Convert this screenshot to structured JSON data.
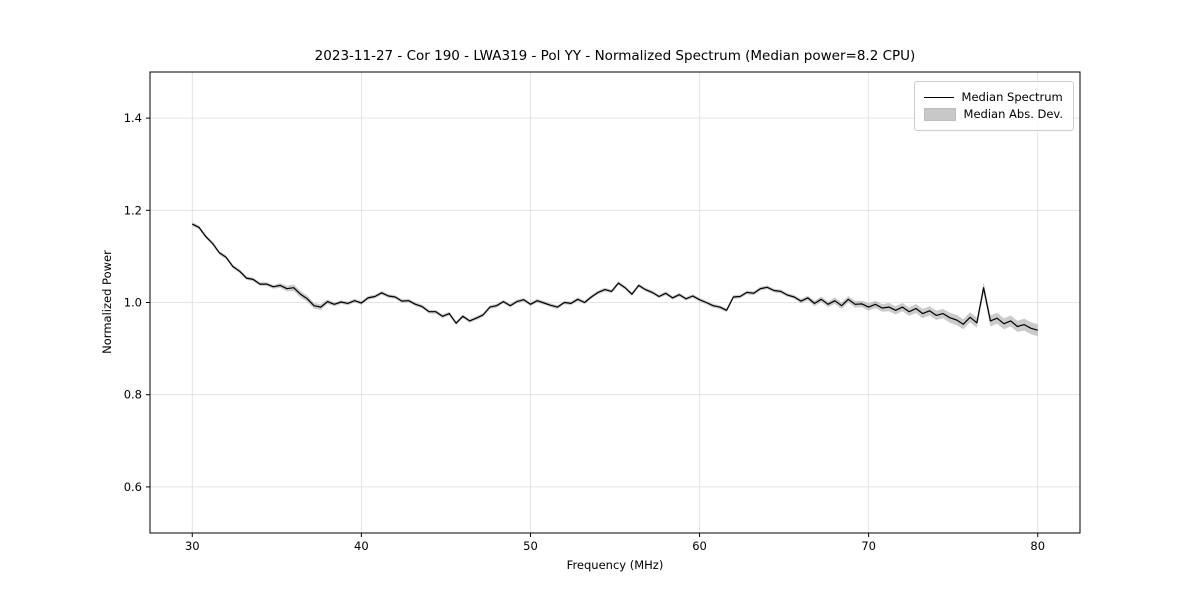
{
  "chart_data": {
    "type": "line",
    "title": "2023-11-27 - Cor 190 - LWA319 - Pol YY - Normalized Spectrum (Median power=8.2 CPU)",
    "xlabel": "Frequency (MHz)",
    "ylabel": "Normalized Power",
    "xlim": [
      27.5,
      82.5
    ],
    "ylim": [
      0.5,
      1.5
    ],
    "xticks": [
      30,
      40,
      50,
      60,
      70,
      80
    ],
    "yticks": [
      0.6,
      0.8,
      1.0,
      1.2,
      1.4
    ],
    "grid": true,
    "grid_color": "#dddddd",
    "line_color": "#000000",
    "band_color": "rgba(160,160,160,0.55)",
    "legend_position": "upper right",
    "legend_entries": [
      {
        "label": "Median Spectrum",
        "type": "line",
        "color": "#000000"
      },
      {
        "label": "Median Abs. Dev.",
        "type": "patch",
        "color": "#c8c8c8"
      }
    ],
    "series": [
      {
        "name": "Median Spectrum",
        "x": [
          30.0,
          30.4,
          30.8,
          31.2,
          31.6,
          32.0,
          32.4,
          32.8,
          33.2,
          33.6,
          34.0,
          34.4,
          34.8,
          35.2,
          35.6,
          36.0,
          36.4,
          36.8,
          37.2,
          37.6,
          38.0,
          38.4,
          38.8,
          39.2,
          39.6,
          40.0,
          40.4,
          40.8,
          41.2,
          41.6,
          42.0,
          42.4,
          42.8,
          43.2,
          43.6,
          44.0,
          44.4,
          44.8,
          45.2,
          45.6,
          46.0,
          46.4,
          46.8,
          47.2,
          47.6,
          48.0,
          48.4,
          48.8,
          49.2,
          49.6,
          50.0,
          50.4,
          50.8,
          51.2,
          51.6,
          52.0,
          52.4,
          52.8,
          53.2,
          53.6,
          54.0,
          54.4,
          54.8,
          55.2,
          55.6,
          56.0,
          56.4,
          56.8,
          57.2,
          57.6,
          58.0,
          58.4,
          58.8,
          59.2,
          59.6,
          60.0,
          60.4,
          60.8,
          61.2,
          61.6,
          62.0,
          62.4,
          62.8,
          63.2,
          63.6,
          64.0,
          64.4,
          64.8,
          65.2,
          65.6,
          66.0,
          66.4,
          66.8,
          67.2,
          67.6,
          68.0,
          68.4,
          68.8,
          69.2,
          69.6,
          70.0,
          70.4,
          70.8,
          71.2,
          71.6,
          72.0,
          72.4,
          72.8,
          73.2,
          73.6,
          74.0,
          74.4,
          74.8,
          75.2,
          75.6,
          76.0,
          76.4,
          76.8,
          77.2,
          77.6,
          78.0,
          78.4,
          78.8,
          79.2,
          79.6,
          80.0
        ],
        "y": [
          1.17,
          1.163,
          1.143,
          1.128,
          1.108,
          1.098,
          1.078,
          1.068,
          1.053,
          1.05,
          1.04,
          1.04,
          1.034,
          1.037,
          1.03,
          1.032,
          1.018,
          1.008,
          0.993,
          0.99,
          1.002,
          0.996,
          1.001,
          0.998,
          1.004,
          0.999,
          1.01,
          1.013,
          1.021,
          1.014,
          1.012,
          1.003,
          1.004,
          0.996,
          0.991,
          0.98,
          0.98,
          0.97,
          0.976,
          0.955,
          0.97,
          0.96,
          0.966,
          0.973,
          0.99,
          0.993,
          1.002,
          0.993,
          1.002,
          1.006,
          0.996,
          1.004,
          0.999,
          0.994,
          0.99,
          1.0,
          0.998,
          1.007,
          1.0,
          1.012,
          1.022,
          1.028,
          1.024,
          1.042,
          1.032,
          1.018,
          1.037,
          1.028,
          1.022,
          1.013,
          1.02,
          1.01,
          1.017,
          1.008,
          1.014,
          1.006,
          1.0,
          0.993,
          0.99,
          0.983,
          1.012,
          1.013,
          1.022,
          1.02,
          1.03,
          1.033,
          1.026,
          1.024,
          1.016,
          1.012,
          1.003,
          1.01,
          0.998,
          1.007,
          0.996,
          1.004,
          0.993,
          1.007,
          0.996,
          0.997,
          0.99,
          0.996,
          0.988,
          0.99,
          0.983,
          0.99,
          0.98,
          0.987,
          0.976,
          0.982,
          0.972,
          0.976,
          0.967,
          0.962,
          0.953,
          0.968,
          0.956,
          1.032,
          0.96,
          0.966,
          0.954,
          0.96,
          0.948,
          0.952,
          0.944,
          0.94
        ]
      },
      {
        "name": "Median Abs. Dev.",
        "band_center_series": 0,
        "mad": [
          0.004,
          0.004,
          0.004,
          0.004,
          0.004,
          0.004,
          0.004,
          0.004,
          0.004,
          0.004,
          0.004,
          0.004,
          0.004,
          0.005,
          0.006,
          0.007,
          0.007,
          0.007,
          0.006,
          0.006,
          0.005,
          0.004,
          0.004,
          0.004,
          0.004,
          0.004,
          0.004,
          0.004,
          0.004,
          0.004,
          0.004,
          0.004,
          0.004,
          0.004,
          0.004,
          0.004,
          0.004,
          0.004,
          0.004,
          0.004,
          0.004,
          0.004,
          0.004,
          0.004,
          0.004,
          0.004,
          0.004,
          0.004,
          0.004,
          0.004,
          0.004,
          0.004,
          0.004,
          0.004,
          0.004,
          0.004,
          0.004,
          0.004,
          0.004,
          0.004,
          0.004,
          0.004,
          0.004,
          0.004,
          0.004,
          0.004,
          0.004,
          0.004,
          0.004,
          0.004,
          0.004,
          0.004,
          0.004,
          0.004,
          0.004,
          0.004,
          0.004,
          0.004,
          0.004,
          0.004,
          0.004,
          0.004,
          0.004,
          0.004,
          0.004,
          0.004,
          0.004,
          0.004,
          0.004,
          0.004,
          0.005,
          0.005,
          0.006,
          0.006,
          0.006,
          0.007,
          0.007,
          0.007,
          0.007,
          0.007,
          0.008,
          0.008,
          0.008,
          0.009,
          0.009,
          0.009,
          0.009,
          0.01,
          0.01,
          0.01,
          0.01,
          0.01,
          0.011,
          0.011,
          0.011,
          0.011,
          0.011,
          0.012,
          0.012,
          0.012,
          0.012,
          0.012,
          0.012,
          0.013,
          0.013,
          0.013
        ]
      }
    ]
  }
}
